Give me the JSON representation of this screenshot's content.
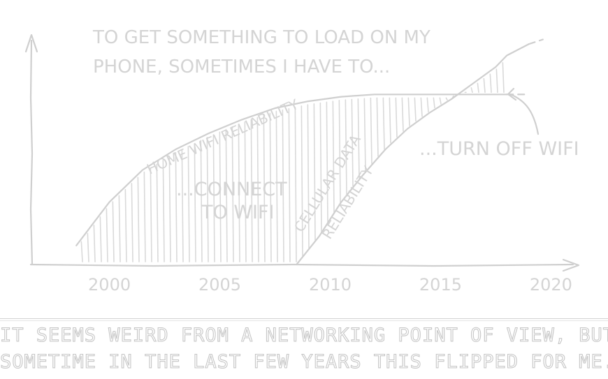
{
  "chart_data": {
    "type": "area",
    "title": "TO GET SOMETHING TO LOAD ON MY PHONE, SOMETIMES I HAVE TO...",
    "title_lines": [
      "TO GET SOMETHING TO LOAD ON MY",
      "PHONE, SOMETIMES I HAVE TO..."
    ],
    "xlabel": "",
    "ylabel": "",
    "xlim": [
      1996.5,
      2021
    ],
    "ylim": [
      0,
      1
    ],
    "x_ticks": [
      "2000",
      "2005",
      "2010",
      "2015",
      "2020"
    ],
    "grid": false,
    "legend": "none",
    "series": [
      {
        "name": "HOME WIFI RELIABILITY",
        "x": [
          1998.5,
          2000,
          2001.5,
          2003,
          2004.5,
          2006,
          2007.5,
          2009,
          2010.5,
          2012,
          2013.5,
          2015,
          2016.5,
          2018
        ],
        "y": [
          0.08,
          0.27,
          0.41,
          0.5,
          0.57,
          0.63,
          0.68,
          0.71,
          0.73,
          0.74,
          0.74,
          0.74,
          0.74,
          0.74
        ]
      },
      {
        "name": "CELLULAR DATA RELIABILITY",
        "x": [
          2008.5,
          2009.5,
          2010.5,
          2011.5,
          2012.5,
          2013.5,
          2014.5,
          2015.5,
          2016.5,
          2017.5,
          2018,
          2019
        ],
        "y": [
          0.0,
          0.12,
          0.27,
          0.39,
          0.5,
          0.59,
          0.66,
          0.72,
          0.79,
          0.86,
          0.91,
          0.96
        ]
      }
    ],
    "annotations": [
      {
        "lines": [
          "...CONNECT",
          "TO WIFI"
        ]
      },
      {
        "lines": [
          "...TURN OFF WIFI"
        ]
      }
    ]
  },
  "caption": {
    "lines": [
      "IT SEEMS WEIRD FROM A NETWORKING POINT OF VIEW, BUT",
      "SOMETIME IN THE LAST FEW YEARS THIS FLIPPED FOR ME."
    ]
  }
}
